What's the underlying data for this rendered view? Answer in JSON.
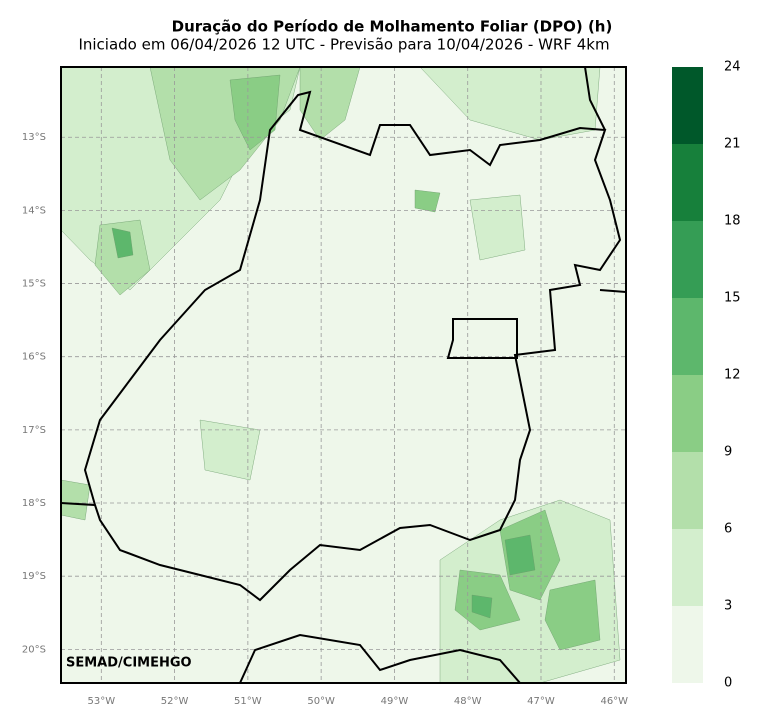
{
  "header": {
    "title": "Duração do Período de Molhamento Foliar (DPO) (h)",
    "subtitle": "Iniciado em 06/04/2026 12 UTC - Previsão para 10/04/2026 - WRF 4km"
  },
  "map": {
    "lonlim": [
      -53.55,
      -45.84
    ],
    "latlim": [
      -12.04,
      -20.46
    ],
    "lon_ticks": [
      {
        "value": -53,
        "label": "53°W"
      },
      {
        "value": -52,
        "label": "52°W"
      },
      {
        "value": -51,
        "label": "51°W"
      },
      {
        "value": -50,
        "label": "50°W"
      },
      {
        "value": -49,
        "label": "49°W"
      },
      {
        "value": -48,
        "label": "48°W"
      },
      {
        "value": -47,
        "label": "47°W"
      },
      {
        "value": -46,
        "label": "46°W"
      }
    ],
    "lat_ticks": [
      {
        "value": -13,
        "label": "13°S"
      },
      {
        "value": -14,
        "label": "14°S"
      },
      {
        "value": -15,
        "label": "15°S"
      },
      {
        "value": -16,
        "label": "16°S"
      },
      {
        "value": -17,
        "label": "17°S"
      },
      {
        "value": -18,
        "label": "18°S"
      },
      {
        "value": -19,
        "label": "19°S"
      },
      {
        "value": -20,
        "label": "20°S"
      }
    ],
    "credit": "SEMAD/CIMEHGO"
  },
  "colorbar": {
    "levels": [
      0,
      3,
      6,
      9,
      12,
      15,
      18,
      21,
      24
    ],
    "colors": [
      "#eef7ea",
      "#d3eecd",
      "#b3dfaa",
      "#8acd85",
      "#5db76c",
      "#359d55",
      "#17803b",
      "#00582a"
    ]
  }
}
